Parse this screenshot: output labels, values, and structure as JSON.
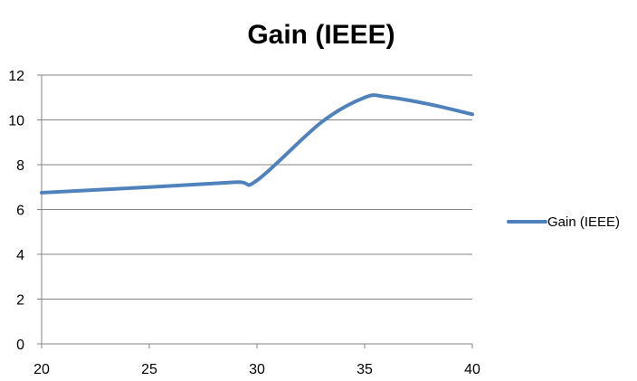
{
  "chart_data": {
    "type": "line",
    "title": "Gain (IEEE)",
    "xlabel": "",
    "ylabel": "",
    "xlim": [
      20,
      40
    ],
    "ylim": [
      0,
      12
    ],
    "x_ticks": [
      20,
      25,
      30,
      35,
      40
    ],
    "y_ticks": [
      0,
      2,
      4,
      6,
      8,
      10,
      12
    ],
    "grid": "horizontal",
    "legend_position": "right",
    "series": [
      {
        "name": "Gain (IEEE)",
        "color": "#4f81bd",
        "x": [
          20,
          25,
          29,
          30,
          33,
          35,
          36,
          38,
          40
        ],
        "y": [
          6.75,
          7.0,
          7.22,
          7.3,
          9.9,
          11.0,
          11.03,
          10.7,
          10.25
        ]
      }
    ]
  }
}
